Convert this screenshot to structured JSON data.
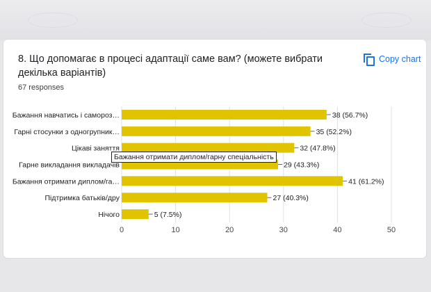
{
  "question": {
    "title": "8. Що допомагає в процесі адаптації саме вам? (можете вибрати декілька варіантів)",
    "responses": "67 responses",
    "copy_label": "Copy chart"
  },
  "tooltip": {
    "text": "Бажання отримати диплом/гарну спеціальність"
  },
  "colors": {
    "bar": "#e0c400",
    "grid": "#e0e0e0",
    "axis_text": "#444444",
    "accent": "#1a73e8"
  },
  "icons": {
    "copy": "copy-icon"
  },
  "chart_data": {
    "type": "bar",
    "orientation": "horizontal",
    "categories": [
      "Бажання навчатись і самороз…",
      "Гарні стосунки з одногрупник…",
      "Цікаві заняття",
      "Гарне викладання викладачів",
      "Бажання отримати диплом/га…",
      "Підтримка батьків/дру",
      "Нічого"
    ],
    "values": [
      38,
      35,
      32,
      29,
      41,
      27,
      5
    ],
    "value_labels": [
      "38 (56.7%)",
      "35 (52.2%)",
      "32 (47.8%)",
      "29 (43.3%)",
      "41 (61.2%)",
      "27 (40.3%)",
      "5 (7.5%)"
    ],
    "xlim": [
      0,
      50
    ],
    "xticks": [
      0,
      10,
      20,
      30,
      40,
      50
    ],
    "grid": true
  }
}
